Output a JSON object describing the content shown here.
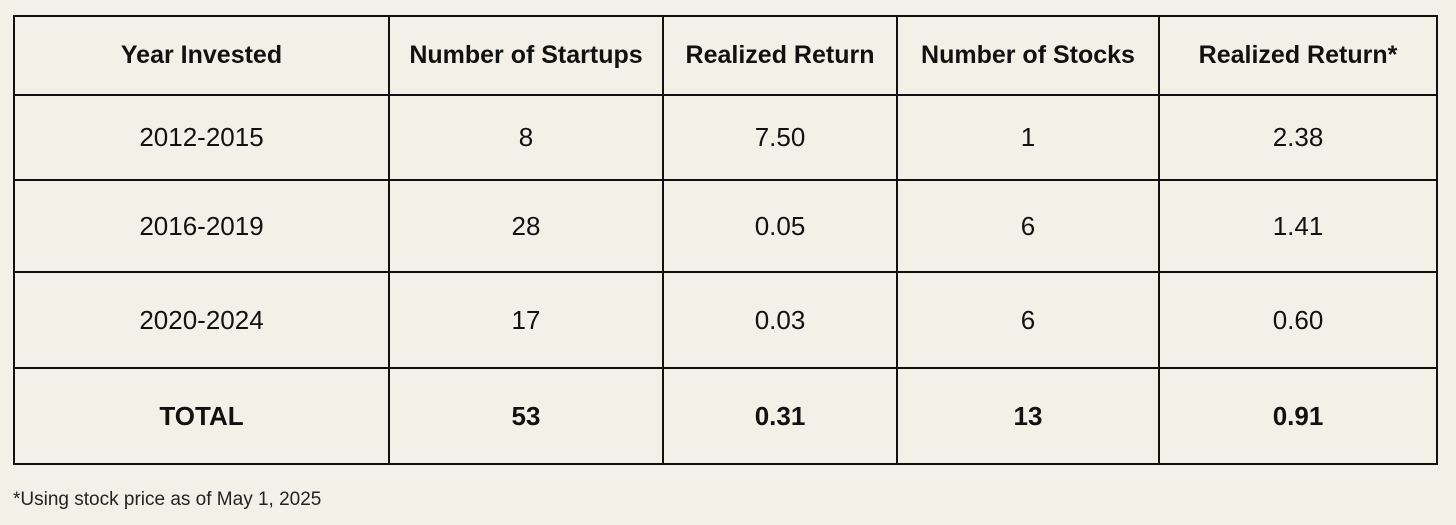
{
  "table": {
    "header": [
      "Year Invested",
      "Number of Startups",
      "Realized Return",
      "Number of Stocks",
      "Realized Return*"
    ],
    "rows": [
      [
        "2012-2015",
        "8",
        "7.50",
        "1",
        "2.38"
      ],
      [
        "2016-2019",
        "28",
        "0.05",
        "6",
        "1.41"
      ],
      [
        "2020-2024",
        "17",
        "0.03",
        "6",
        "0.60"
      ]
    ],
    "total": [
      "TOTAL",
      "53",
      "0.31",
      "13",
      "0.91"
    ]
  },
  "footnote": "*Using stock price as of May 1, 2025"
}
